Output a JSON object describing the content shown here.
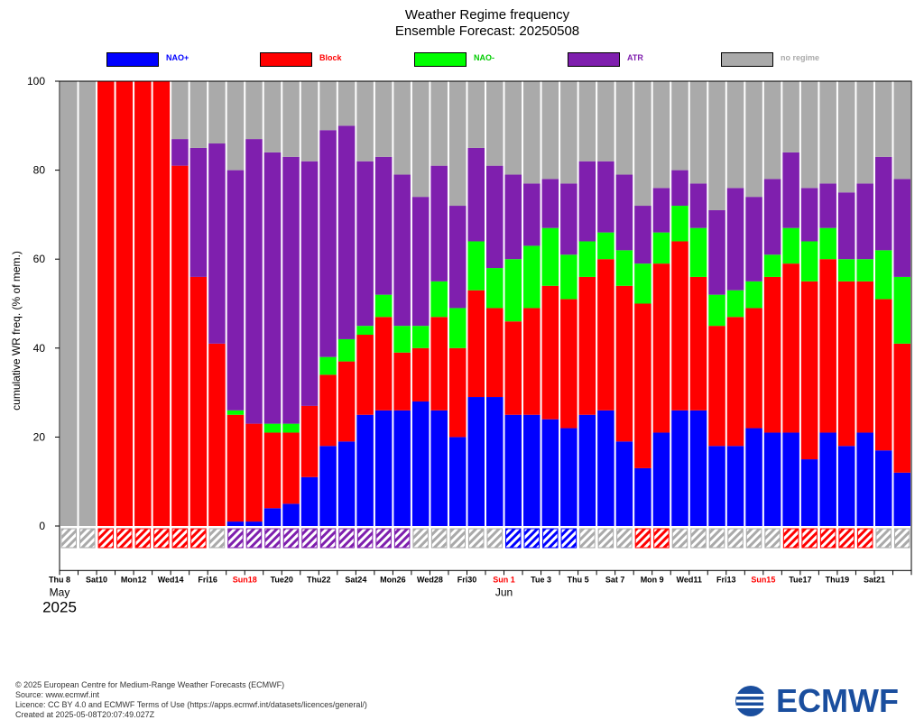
{
  "title": "Weather Regime frequency",
  "subtitle": "Ensemble Forecast: 20250508",
  "footer": {
    "line1": "© 2025 European Centre for Medium-Range Weather Forecasts (ECMWF)",
    "line2": "Source: www.ecmwf.int",
    "line3": "Licence: CC BY 4.0 and ECMWF Terms of Use (https://apps.ecmwf.int/datasets/licences/general/)",
    "line4": "Created at 2025-05-08T20:07:49.027Z"
  },
  "logo_text": "ECMWF",
  "colors": {
    "nao_plus": "#0000ff",
    "block": "#ff0000",
    "nao_minus": "#00ff00",
    "atr": "#7f1fae",
    "no_regime": "#aaaaaa",
    "sunday_label": "#ff0000"
  },
  "chart_data": {
    "type": "bar",
    "stacked": true,
    "ylabel": "cumulative WR freq. (% of mem.)",
    "ylim": [
      -10,
      100
    ],
    "yticks": [
      0,
      20,
      40,
      60,
      80,
      100
    ],
    "legend_position": "top",
    "series": [
      {
        "name": "NAO+",
        "color": "#0000ff",
        "label_color": "#0000ff",
        "values": [
          0,
          0,
          0,
          0,
          0,
          0,
          0,
          0,
          0,
          1,
          1,
          4,
          5,
          11,
          18,
          19,
          25,
          26,
          26,
          28,
          26,
          20,
          29,
          29,
          25,
          25,
          24,
          22,
          25,
          26,
          19,
          13,
          21,
          26,
          26,
          18,
          18,
          22,
          21,
          21,
          15,
          21,
          18,
          21,
          17,
          12
        ]
      },
      {
        "name": "Block",
        "color": "#ff0000",
        "label_color": "#ff0000",
        "values": [
          0,
          0,
          100,
          100,
          100,
          100,
          81,
          56,
          41,
          24,
          22,
          17,
          16,
          16,
          16,
          18,
          18,
          21,
          13,
          12,
          21,
          20,
          24,
          20,
          21,
          24,
          30,
          29,
          31,
          34,
          35,
          37,
          38,
          38,
          30,
          27,
          29,
          27,
          35,
          38,
          40,
          39,
          37,
          34,
          34,
          29
        ]
      },
      {
        "name": "NAO-",
        "color": "#00ff00",
        "label_color": "#00cc00",
        "values": [
          0,
          0,
          0,
          0,
          0,
          0,
          0,
          0,
          0,
          1,
          0,
          2,
          2,
          0,
          4,
          5,
          2,
          5,
          6,
          5,
          8,
          9,
          11,
          9,
          14,
          14,
          13,
          10,
          8,
          6,
          8,
          9,
          7,
          8,
          11,
          7,
          6,
          6,
          5,
          8,
          9,
          7,
          5,
          5,
          11,
          15
        ]
      },
      {
        "name": "ATR",
        "color": "#7f1fae",
        "label_color": "#7f1fae",
        "values": [
          0,
          0,
          0,
          0,
          0,
          0,
          6,
          29,
          45,
          54,
          64,
          61,
          60,
          55,
          51,
          48,
          37,
          31,
          34,
          29,
          26,
          23,
          21,
          23,
          19,
          14,
          11,
          16,
          18,
          16,
          17,
          13,
          10,
          8,
          10,
          19,
          23,
          19,
          17,
          17,
          12,
          10,
          15,
          17,
          21,
          22
        ]
      },
      {
        "name": "no regime",
        "color": "#aaaaaa",
        "label_color": "#aaaaaa",
        "values": [
          100,
          100,
          0,
          0,
          0,
          0,
          13,
          15,
          14,
          20,
          13,
          16,
          17,
          18,
          11,
          10,
          18,
          17,
          21,
          26,
          19,
          28,
          15,
          19,
          21,
          23,
          22,
          23,
          18,
          18,
          21,
          28,
          24,
          20,
          23,
          29,
          24,
          26,
          22,
          16,
          24,
          23,
          25,
          23,
          17,
          22
        ]
      }
    ],
    "dominant_regime": [
      "none",
      "none",
      "Block",
      "Block",
      "Block",
      "Block",
      "Block",
      "Block",
      "none",
      "ATR",
      "ATR",
      "ATR",
      "ATR",
      "ATR",
      "ATR",
      "ATR",
      "ATR",
      "ATR",
      "ATR",
      "none",
      "none",
      "none",
      "none",
      "none",
      "NAO+",
      "NAO+",
      "NAO+",
      "NAO+",
      "none",
      "none",
      "none",
      "Block",
      "Block",
      "none",
      "none",
      "none",
      "none",
      "none",
      "none",
      "Block",
      "Block",
      "Block",
      "Block",
      "Block",
      "none",
      "none"
    ],
    "x_tick_labels": [
      {
        "day": 0,
        "label": "Thu 8",
        "sunday": false
      },
      {
        "day": 2,
        "label": "Sat10",
        "sunday": false
      },
      {
        "day": 4,
        "label": "Mon12",
        "sunday": false
      },
      {
        "day": 6,
        "label": "Wed14",
        "sunday": false
      },
      {
        "day": 8,
        "label": "Fri16",
        "sunday": false
      },
      {
        "day": 10,
        "label": "Sun18",
        "sunday": true
      },
      {
        "day": 12,
        "label": "Tue20",
        "sunday": false
      },
      {
        "day": 14,
        "label": "Thu22",
        "sunday": false
      },
      {
        "day": 16,
        "label": "Sat24",
        "sunday": false
      },
      {
        "day": 18,
        "label": "Mon26",
        "sunday": false
      },
      {
        "day": 20,
        "label": "Wed28",
        "sunday": false
      },
      {
        "day": 22,
        "label": "Fri30",
        "sunday": false
      },
      {
        "day": 24,
        "label": "Sun 1",
        "sunday": true
      },
      {
        "day": 26,
        "label": "Tue 3",
        "sunday": false
      },
      {
        "day": 28,
        "label": "Thu 5",
        "sunday": false
      },
      {
        "day": 30,
        "label": "Sat 7",
        "sunday": false
      },
      {
        "day": 32,
        "label": "Mon 9",
        "sunday": false
      },
      {
        "day": 34,
        "label": "Wed11",
        "sunday": false
      },
      {
        "day": 36,
        "label": "Fri13",
        "sunday": false
      },
      {
        "day": 38,
        "label": "Sun15",
        "sunday": true
      },
      {
        "day": 40,
        "label": "Tue17",
        "sunday": false
      },
      {
        "day": 42,
        "label": "Thu19",
        "sunday": false
      },
      {
        "day": 44,
        "label": "Sat21",
        "sunday": false
      }
    ],
    "month_labels": [
      {
        "day": 0,
        "label": "May"
      },
      {
        "day": 24,
        "label": "Jun"
      }
    ],
    "year_label": "2025"
  }
}
